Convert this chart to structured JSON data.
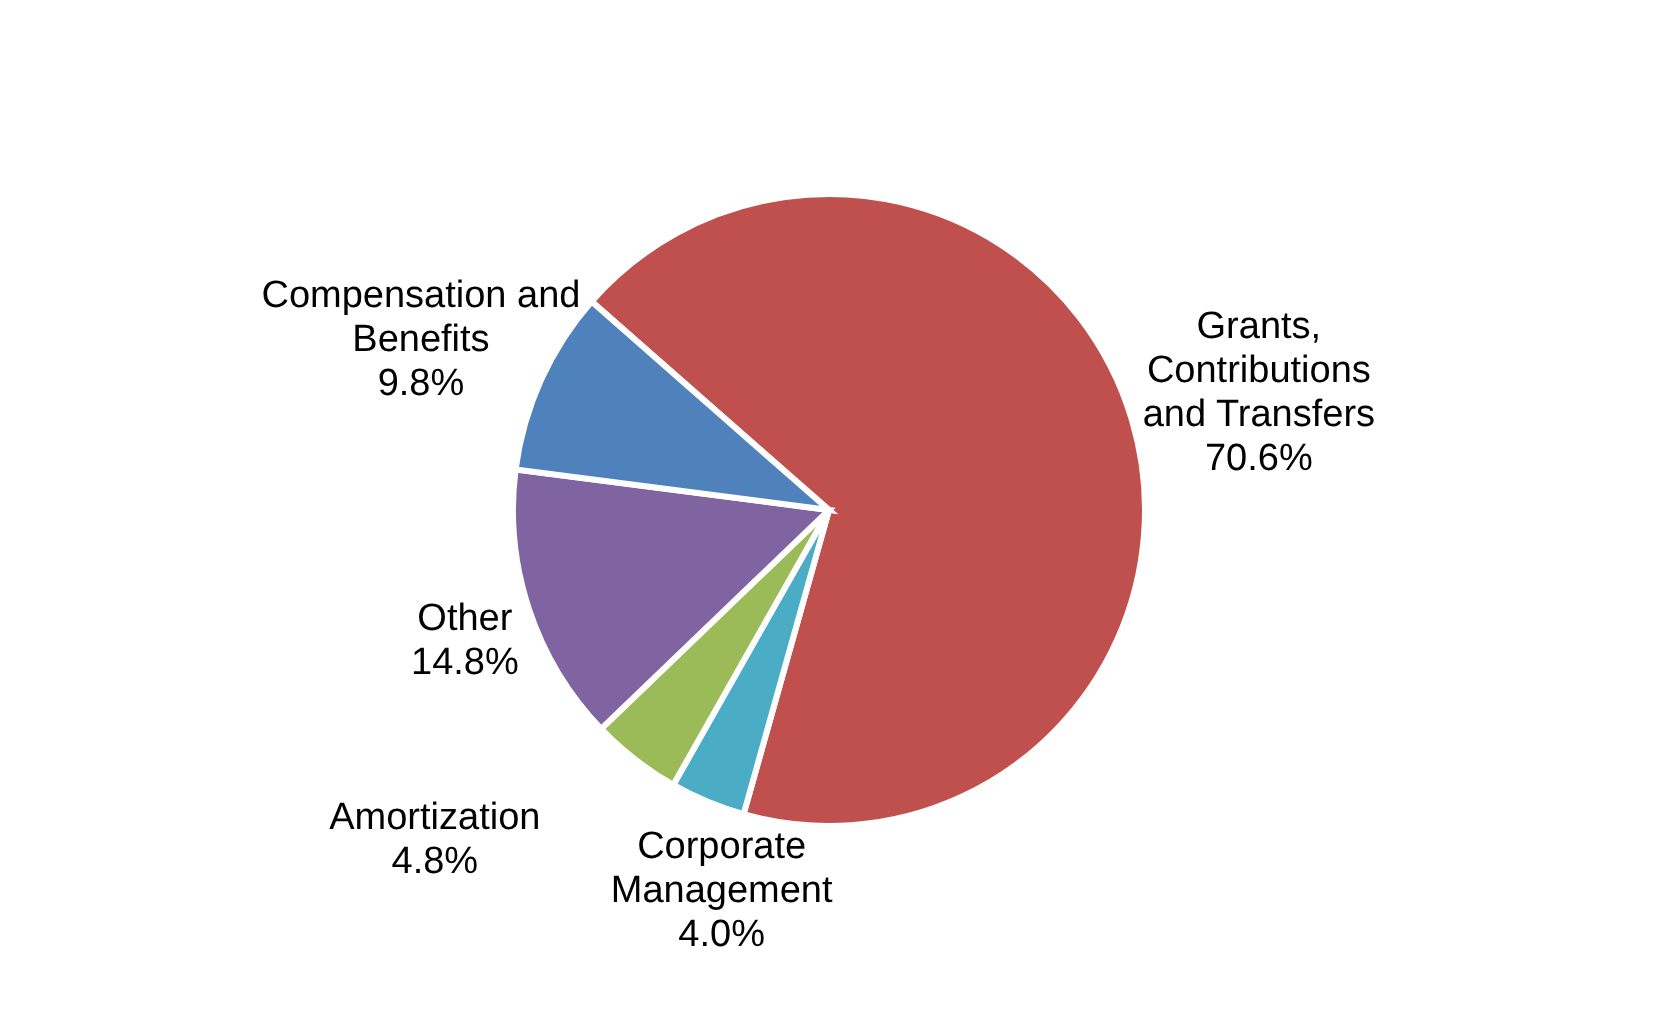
{
  "chart_data": {
    "type": "pie",
    "categories": [
      "Grants, Contributions and Transfers",
      "Corporate Management",
      "Amortization",
      "Other",
      "Compensation and Benefits"
    ],
    "values": [
      70.6,
      4.0,
      4.8,
      14.8,
      9.8
    ],
    "colors": [
      "#c0504d",
      "#4bacc6",
      "#9bbb59",
      "#8064a2",
      "#4f81bd"
    ],
    "value_labels": [
      "70.6%",
      "4.0%",
      "4.8%",
      "14.8%",
      "9.8%"
    ]
  }
}
